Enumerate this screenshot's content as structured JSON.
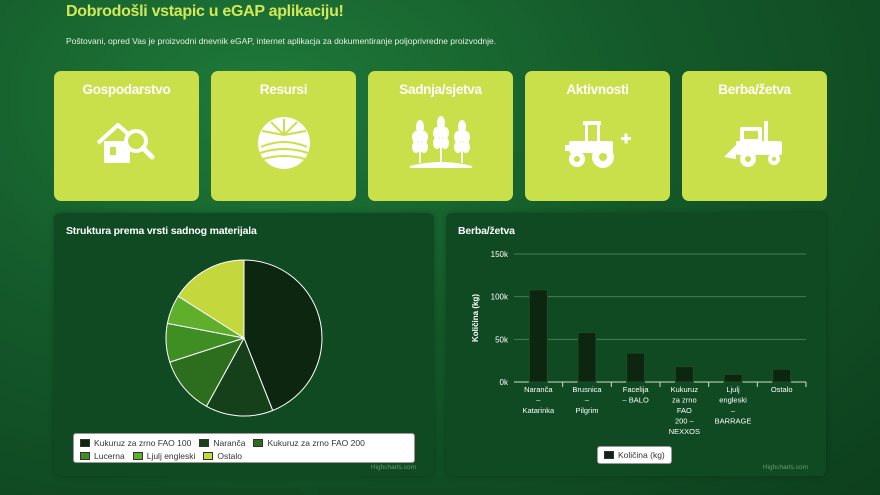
{
  "header": {
    "title": "Dobrodošli vstapic u eGAP aplikaciju!",
    "subtitle": "Poštovani, opred Vas je proizvodni dnevnik eGAP, internet aplikacja za dokumentiranje poljoprivredne proizvodnje."
  },
  "tiles": [
    {
      "label": "Gospodarstvo",
      "icon": "house-search-icon"
    },
    {
      "label": "Resursi",
      "icon": "field-sun-icon"
    },
    {
      "label": "Sadnja/sjetva",
      "icon": "wheat-icon"
    },
    {
      "label": "Aktivnosti",
      "icon": "tractor-add-icon"
    },
    {
      "label": "Berba/žetva",
      "icon": "harvester-icon"
    }
  ],
  "colors": {
    "tile": "#c9e04a",
    "title": "#d2e85a",
    "panel": "#0f4a22"
  },
  "credits": "Highcharts.com",
  "chart_data": [
    {
      "type": "pie",
      "title": "Struktura prema vrsti sadnog materijala",
      "slices": [
        {
          "name": "Kukuruz za zrno FAO 100",
          "value": 44,
          "color": "#0d260f"
        },
        {
          "name": "Naranča",
          "value": 14,
          "color": "#15401a"
        },
        {
          "name": "Kukuruz za zrno FAO 200",
          "value": 12,
          "color": "#2d6e1e"
        },
        {
          "name": "Lucerna",
          "value": 8,
          "color": "#3e8e24"
        },
        {
          "name": "Ljulj engleski",
          "value": 6,
          "color": "#5fae2c"
        },
        {
          "name": "Ostalo",
          "value": 16,
          "color": "#c4d83e"
        }
      ],
      "legend_position": "bottom"
    },
    {
      "type": "bar",
      "title": "Berba/žetva",
      "ylabel": "Količina (kg)",
      "ylim": [
        0,
        150000
      ],
      "yticks": [
        "0k",
        "50k",
        "100k",
        "150k"
      ],
      "categories": [
        [
          "Naranča",
          "–",
          "Katarinka"
        ],
        [
          "Brusnica",
          "–",
          "Pilgrim"
        ],
        [
          "Facelija",
          "– BALO"
        ],
        [
          "Kukuruz",
          "za zrno",
          "FAO",
          "200 –",
          "NEXXOS"
        ],
        [
          "Ljulj",
          "engleski",
          "–",
          "BARRAGE"
        ],
        [
          "Ostalo"
        ]
      ],
      "series": [
        {
          "name": "Količina (kg)",
          "values": [
            108000,
            58000,
            34000,
            18000,
            9000,
            15000
          ]
        }
      ],
      "grid": true,
      "legend_position": "bottom"
    }
  ]
}
